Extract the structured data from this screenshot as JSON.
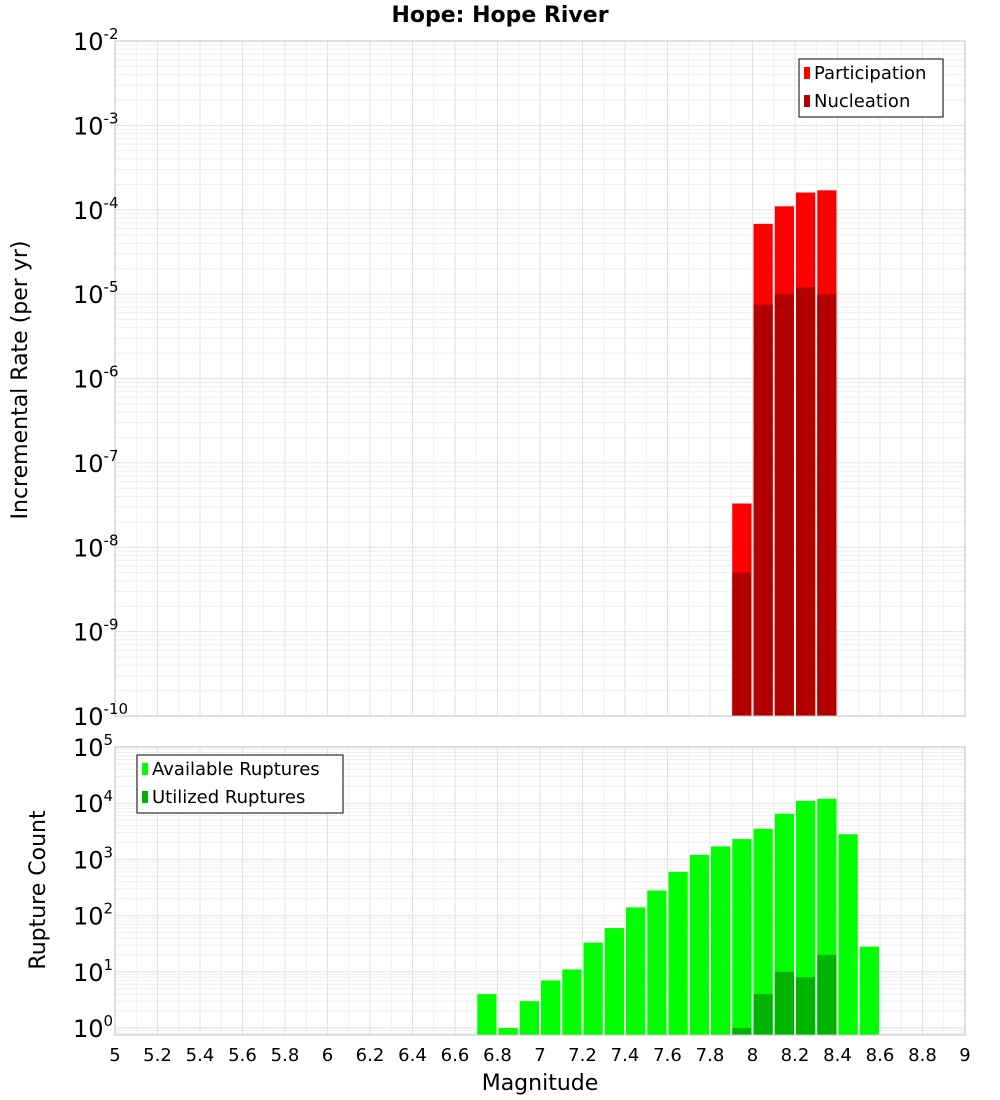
{
  "title": "Hope: Hope River",
  "xlabel": "Magnitude",
  "chart_data": [
    {
      "type": "bar",
      "title": "Hope: Hope River",
      "xlabel": "",
      "ylabel": "Incremental Rate (per yr)",
      "xlim": [
        5,
        9
      ],
      "ylim": [
        1e-10,
        0.01
      ],
      "yscale": "log",
      "grid": true,
      "legend_position": "top-right",
      "bar_width": 0.1,
      "x": [
        7.95,
        8.05,
        8.15,
        8.25,
        8.35
      ],
      "series": [
        {
          "name": "Participation",
          "color": "#ff0000",
          "values": [
            3.3e-08,
            6.8e-05,
            0.00011,
            0.00016,
            0.00017
          ]
        },
        {
          "name": "Nucleation",
          "color": "#b30000",
          "values": [
            5e-09,
            7.5e-06,
            1e-05,
            1.2e-05,
            1e-05
          ]
        }
      ]
    },
    {
      "type": "bar",
      "title": "",
      "xlabel": "Magnitude",
      "ylabel": "Rupture Count",
      "xlim": [
        5,
        9
      ],
      "ylim": [
        0.75,
        100000.0
      ],
      "yscale": "log",
      "grid": true,
      "legend_position": "top-left",
      "bar_width": 0.1,
      "x": [
        6.75,
        6.85,
        6.95,
        7.05,
        7.15,
        7.25,
        7.35,
        7.45,
        7.55,
        7.65,
        7.75,
        7.85,
        7.95,
        8.05,
        8.15,
        8.25,
        8.35,
        8.45,
        8.55
      ],
      "series": [
        {
          "name": "Available Ruptures",
          "color": "#00ff00",
          "values": [
            4,
            1,
            3,
            7,
            11,
            33,
            60,
            140,
            280,
            600,
            1200,
            1700,
            2300,
            3500,
            6500,
            11000,
            12000,
            2800,
            28
          ]
        },
        {
          "name": "Utilized Ruptures",
          "color": "#00b300",
          "values": [
            0,
            0,
            0,
            0,
            0,
            0,
            0,
            0,
            0,
            0,
            0,
            0,
            1,
            4,
            10,
            8,
            20,
            0,
            0
          ]
        }
      ]
    }
  ],
  "xticks": [
    "5",
    "5.2",
    "5.4",
    "5.6",
    "5.8",
    "6",
    "6.2",
    "6.4",
    "6.6",
    "6.8",
    "7",
    "7.2",
    "7.4",
    "7.6",
    "7.8",
    "8",
    "8.2",
    "8.4",
    "8.6",
    "8.8",
    "9"
  ],
  "top_yticks": [
    {
      "base": "10",
      "exp": "-10"
    },
    {
      "base": "10",
      "exp": "-9"
    },
    {
      "base": "10",
      "exp": "-8"
    },
    {
      "base": "10",
      "exp": "-7"
    },
    {
      "base": "10",
      "exp": "-6"
    },
    {
      "base": "10",
      "exp": "-5"
    },
    {
      "base": "10",
      "exp": "-4"
    },
    {
      "base": "10",
      "exp": "-3"
    },
    {
      "base": "10",
      "exp": "-2"
    }
  ],
  "bottom_yticks": [
    {
      "base": "10",
      "exp": "0"
    },
    {
      "base": "10",
      "exp": "1"
    },
    {
      "base": "10",
      "exp": "2"
    },
    {
      "base": "10",
      "exp": "3"
    },
    {
      "base": "10",
      "exp": "4"
    },
    {
      "base": "10",
      "exp": "5"
    }
  ]
}
